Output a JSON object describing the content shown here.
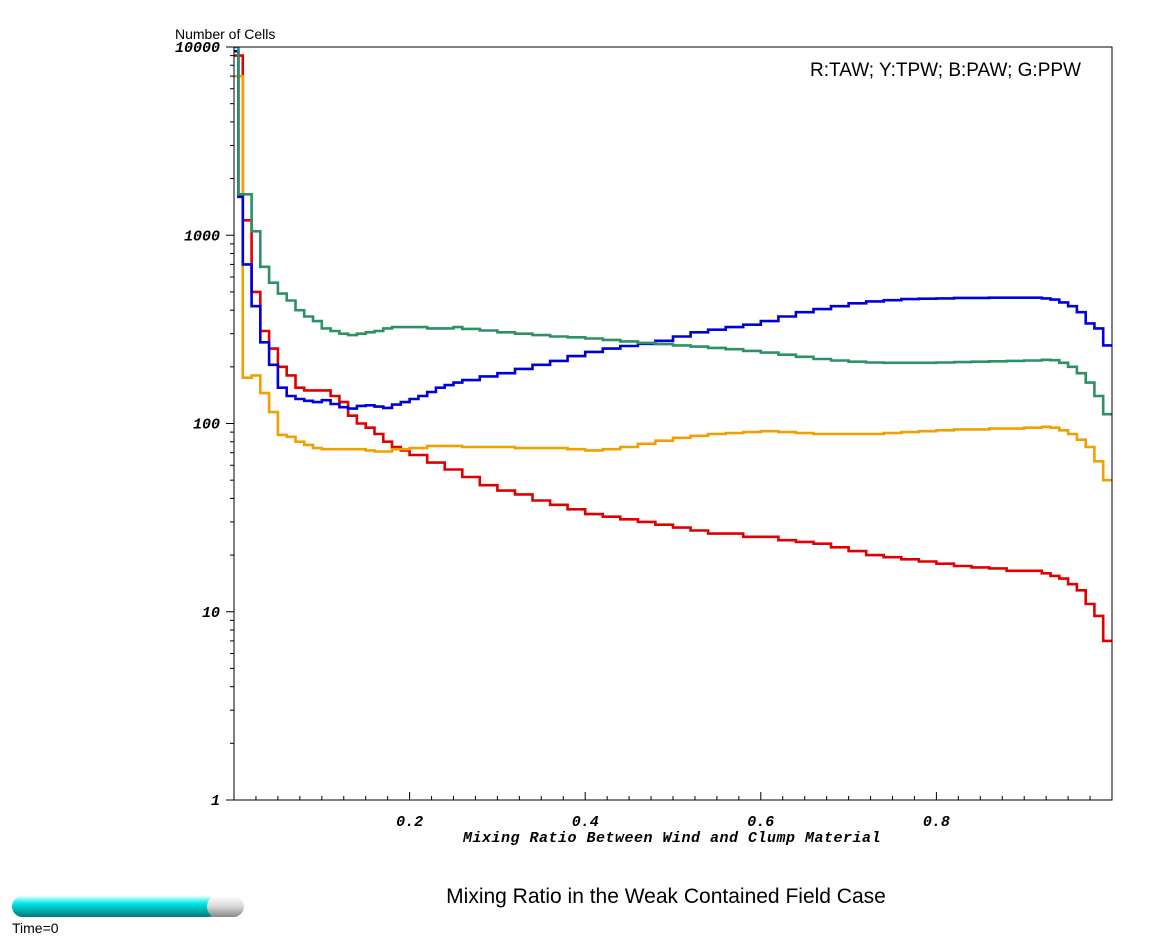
{
  "title": "Mixing Ratio in the Weak Contained Field Case",
  "time_label": "Time=0",
  "time_slider": {
    "progress": 0.92,
    "color": "#00cccc"
  },
  "chart_data": {
    "type": "line",
    "xlabel": "Mixing Ratio Between Wind and Clump Material",
    "ylabel": "Number of Cells",
    "xlim": [
      0,
      1
    ],
    "ylim": [
      1,
      10000
    ],
    "yscale": "log",
    "x_ticks": [
      0.2,
      0.4,
      0.6,
      0.8
    ],
    "x_tick_labels": [
      "0.2",
      "0.4",
      "0.6",
      "0.8"
    ],
    "y_ticks": [
      1,
      10,
      100,
      1000,
      10000
    ],
    "y_tick_labels": [
      "1",
      "10",
      "100",
      "1000",
      "10000"
    ],
    "legend_text": "R:TAW; Y:TPW; B:PAW; G:PPW",
    "legend_position": "top-right",
    "grid": false,
    "step": true,
    "series": [
      {
        "key": "TAW",
        "color": "#e00000",
        "points": [
          [
            0,
            9000
          ],
          [
            0.01,
            1200
          ],
          [
            0.02,
            500
          ],
          [
            0.03,
            310
          ],
          [
            0.04,
            250
          ],
          [
            0.05,
            200
          ],
          [
            0.06,
            180
          ],
          [
            0.07,
            155
          ],
          [
            0.08,
            150
          ],
          [
            0.1,
            150
          ],
          [
            0.11,
            140
          ],
          [
            0.12,
            130
          ],
          [
            0.13,
            110
          ],
          [
            0.14,
            100
          ],
          [
            0.15,
            95
          ],
          [
            0.16,
            88
          ],
          [
            0.17,
            80
          ],
          [
            0.18,
            75
          ],
          [
            0.19,
            72
          ],
          [
            0.2,
            68
          ],
          [
            0.22,
            62
          ],
          [
            0.24,
            57
          ],
          [
            0.26,
            52
          ],
          [
            0.28,
            47
          ],
          [
            0.3,
            44
          ],
          [
            0.32,
            42
          ],
          [
            0.34,
            39
          ],
          [
            0.36,
            37
          ],
          [
            0.38,
            35
          ],
          [
            0.4,
            33
          ],
          [
            0.42,
            32
          ],
          [
            0.44,
            31
          ],
          [
            0.46,
            30
          ],
          [
            0.48,
            29
          ],
          [
            0.5,
            28
          ],
          [
            0.52,
            27
          ],
          [
            0.54,
            26
          ],
          [
            0.56,
            26
          ],
          [
            0.58,
            25
          ],
          [
            0.6,
            25
          ],
          [
            0.62,
            24
          ],
          [
            0.64,
            23.5
          ],
          [
            0.66,
            23
          ],
          [
            0.68,
            22
          ],
          [
            0.7,
            21
          ],
          [
            0.72,
            20
          ],
          [
            0.74,
            19.5
          ],
          [
            0.76,
            19
          ],
          [
            0.78,
            18.5
          ],
          [
            0.8,
            18
          ],
          [
            0.82,
            17.5
          ],
          [
            0.84,
            17.2
          ],
          [
            0.86,
            17
          ],
          [
            0.88,
            16.5
          ],
          [
            0.9,
            16.5
          ],
          [
            0.92,
            16
          ],
          [
            0.93,
            15.5
          ],
          [
            0.94,
            15
          ],
          [
            0.95,
            14
          ],
          [
            0.96,
            13
          ],
          [
            0.97,
            11
          ],
          [
            0.98,
            9.5
          ],
          [
            0.99,
            7
          ]
        ]
      },
      {
        "key": "TPW",
        "color": "#f0a000",
        "points": [
          [
            0,
            7000
          ],
          [
            0.01,
            175
          ],
          [
            0.02,
            180
          ],
          [
            0.03,
            145
          ],
          [
            0.04,
            115
          ],
          [
            0.05,
            87
          ],
          [
            0.06,
            85
          ],
          [
            0.07,
            80
          ],
          [
            0.08,
            77
          ],
          [
            0.09,
            74
          ],
          [
            0.1,
            73
          ],
          [
            0.12,
            73
          ],
          [
            0.14,
            73
          ],
          [
            0.15,
            72
          ],
          [
            0.16,
            71
          ],
          [
            0.18,
            73
          ],
          [
            0.2,
            74
          ],
          [
            0.22,
            76
          ],
          [
            0.24,
            76
          ],
          [
            0.26,
            75
          ],
          [
            0.28,
            75
          ],
          [
            0.3,
            75
          ],
          [
            0.32,
            74
          ],
          [
            0.34,
            74
          ],
          [
            0.36,
            74
          ],
          [
            0.38,
            73
          ],
          [
            0.4,
            72
          ],
          [
            0.42,
            73
          ],
          [
            0.44,
            75
          ],
          [
            0.46,
            78
          ],
          [
            0.48,
            81
          ],
          [
            0.5,
            84
          ],
          [
            0.52,
            86
          ],
          [
            0.54,
            88
          ],
          [
            0.56,
            89
          ],
          [
            0.58,
            90
          ],
          [
            0.6,
            91
          ],
          [
            0.62,
            90
          ],
          [
            0.64,
            89
          ],
          [
            0.66,
            88
          ],
          [
            0.68,
            88
          ],
          [
            0.7,
            88
          ],
          [
            0.72,
            88
          ],
          [
            0.74,
            89
          ],
          [
            0.76,
            90
          ],
          [
            0.78,
            91
          ],
          [
            0.8,
            92
          ],
          [
            0.82,
            93
          ],
          [
            0.84,
            93
          ],
          [
            0.86,
            94
          ],
          [
            0.88,
            94
          ],
          [
            0.9,
            95
          ],
          [
            0.92,
            96
          ],
          [
            0.93,
            95
          ],
          [
            0.94,
            92
          ],
          [
            0.95,
            88
          ],
          [
            0.96,
            82
          ],
          [
            0.97,
            75
          ],
          [
            0.98,
            63
          ],
          [
            0.99,
            50
          ]
        ]
      },
      {
        "key": "PAW",
        "color": "#0000dd",
        "points": [
          [
            0,
            9500
          ],
          [
            0.005,
            1600
          ],
          [
            0.01,
            700
          ],
          [
            0.02,
            420
          ],
          [
            0.03,
            270
          ],
          [
            0.04,
            205
          ],
          [
            0.05,
            155
          ],
          [
            0.06,
            140
          ],
          [
            0.07,
            135
          ],
          [
            0.08,
            132
          ],
          [
            0.09,
            130
          ],
          [
            0.1,
            133
          ],
          [
            0.11,
            127
          ],
          [
            0.12,
            122
          ],
          [
            0.13,
            120
          ],
          [
            0.14,
            124
          ],
          [
            0.15,
            125
          ],
          [
            0.16,
            123
          ],
          [
            0.17,
            121
          ],
          [
            0.18,
            126
          ],
          [
            0.19,
            130
          ],
          [
            0.2,
            135
          ],
          [
            0.21,
            140
          ],
          [
            0.22,
            147
          ],
          [
            0.23,
            155
          ],
          [
            0.24,
            160
          ],
          [
            0.25,
            165
          ],
          [
            0.26,
            170
          ],
          [
            0.28,
            178
          ],
          [
            0.3,
            185
          ],
          [
            0.32,
            195
          ],
          [
            0.34,
            205
          ],
          [
            0.36,
            215
          ],
          [
            0.38,
            228
          ],
          [
            0.4,
            240
          ],
          [
            0.42,
            250
          ],
          [
            0.44,
            258
          ],
          [
            0.46,
            265
          ],
          [
            0.48,
            275
          ],
          [
            0.5,
            290
          ],
          [
            0.52,
            305
          ],
          [
            0.54,
            315
          ],
          [
            0.56,
            325
          ],
          [
            0.58,
            335
          ],
          [
            0.6,
            350
          ],
          [
            0.62,
            370
          ],
          [
            0.64,
            390
          ],
          [
            0.66,
            405
          ],
          [
            0.68,
            420
          ],
          [
            0.7,
            435
          ],
          [
            0.72,
            445
          ],
          [
            0.74,
            452
          ],
          [
            0.76,
            458
          ],
          [
            0.78,
            460
          ],
          [
            0.8,
            462
          ],
          [
            0.82,
            465
          ],
          [
            0.84,
            465
          ],
          [
            0.86,
            466
          ],
          [
            0.88,
            466
          ],
          [
            0.9,
            466
          ],
          [
            0.92,
            462
          ],
          [
            0.93,
            455
          ],
          [
            0.94,
            440
          ],
          [
            0.95,
            420
          ],
          [
            0.96,
            390
          ],
          [
            0.97,
            340
          ],
          [
            0.98,
            320
          ],
          [
            0.99,
            260
          ]
        ]
      },
      {
        "key": "PPW",
        "color": "#2e9065",
        "points": [
          [
            0,
            10000
          ],
          [
            0.005,
            1650
          ],
          [
            0.01,
            1650
          ],
          [
            0.02,
            1050
          ],
          [
            0.03,
            680
          ],
          [
            0.04,
            560
          ],
          [
            0.05,
            490
          ],
          [
            0.06,
            450
          ],
          [
            0.07,
            400
          ],
          [
            0.08,
            370
          ],
          [
            0.09,
            350
          ],
          [
            0.1,
            320
          ],
          [
            0.11,
            310
          ],
          [
            0.12,
            300
          ],
          [
            0.13,
            295
          ],
          [
            0.14,
            300
          ],
          [
            0.15,
            305
          ],
          [
            0.16,
            310
          ],
          [
            0.17,
            320
          ],
          [
            0.18,
            325
          ],
          [
            0.2,
            325
          ],
          [
            0.22,
            320
          ],
          [
            0.24,
            320
          ],
          [
            0.25,
            325
          ],
          [
            0.26,
            318
          ],
          [
            0.28,
            312
          ],
          [
            0.3,
            305
          ],
          [
            0.32,
            300
          ],
          [
            0.34,
            295
          ],
          [
            0.36,
            290
          ],
          [
            0.38,
            287
          ],
          [
            0.4,
            283
          ],
          [
            0.42,
            278
          ],
          [
            0.44,
            273
          ],
          [
            0.46,
            268
          ],
          [
            0.48,
            264
          ],
          [
            0.5,
            260
          ],
          [
            0.52,
            256
          ],
          [
            0.54,
            252
          ],
          [
            0.56,
            248
          ],
          [
            0.58,
            243
          ],
          [
            0.6,
            238
          ],
          [
            0.62,
            232
          ],
          [
            0.64,
            226
          ],
          [
            0.66,
            220
          ],
          [
            0.68,
            216
          ],
          [
            0.7,
            213
          ],
          [
            0.72,
            211
          ],
          [
            0.74,
            210
          ],
          [
            0.76,
            210
          ],
          [
            0.78,
            210
          ],
          [
            0.8,
            211
          ],
          [
            0.82,
            212
          ],
          [
            0.84,
            213
          ],
          [
            0.86,
            214
          ],
          [
            0.88,
            215
          ],
          [
            0.9,
            216
          ],
          [
            0.92,
            218
          ],
          [
            0.93,
            217
          ],
          [
            0.94,
            210
          ],
          [
            0.95,
            200
          ],
          [
            0.96,
            185
          ],
          [
            0.97,
            165
          ],
          [
            0.98,
            140
          ],
          [
            0.99,
            112
          ]
        ]
      }
    ]
  }
}
